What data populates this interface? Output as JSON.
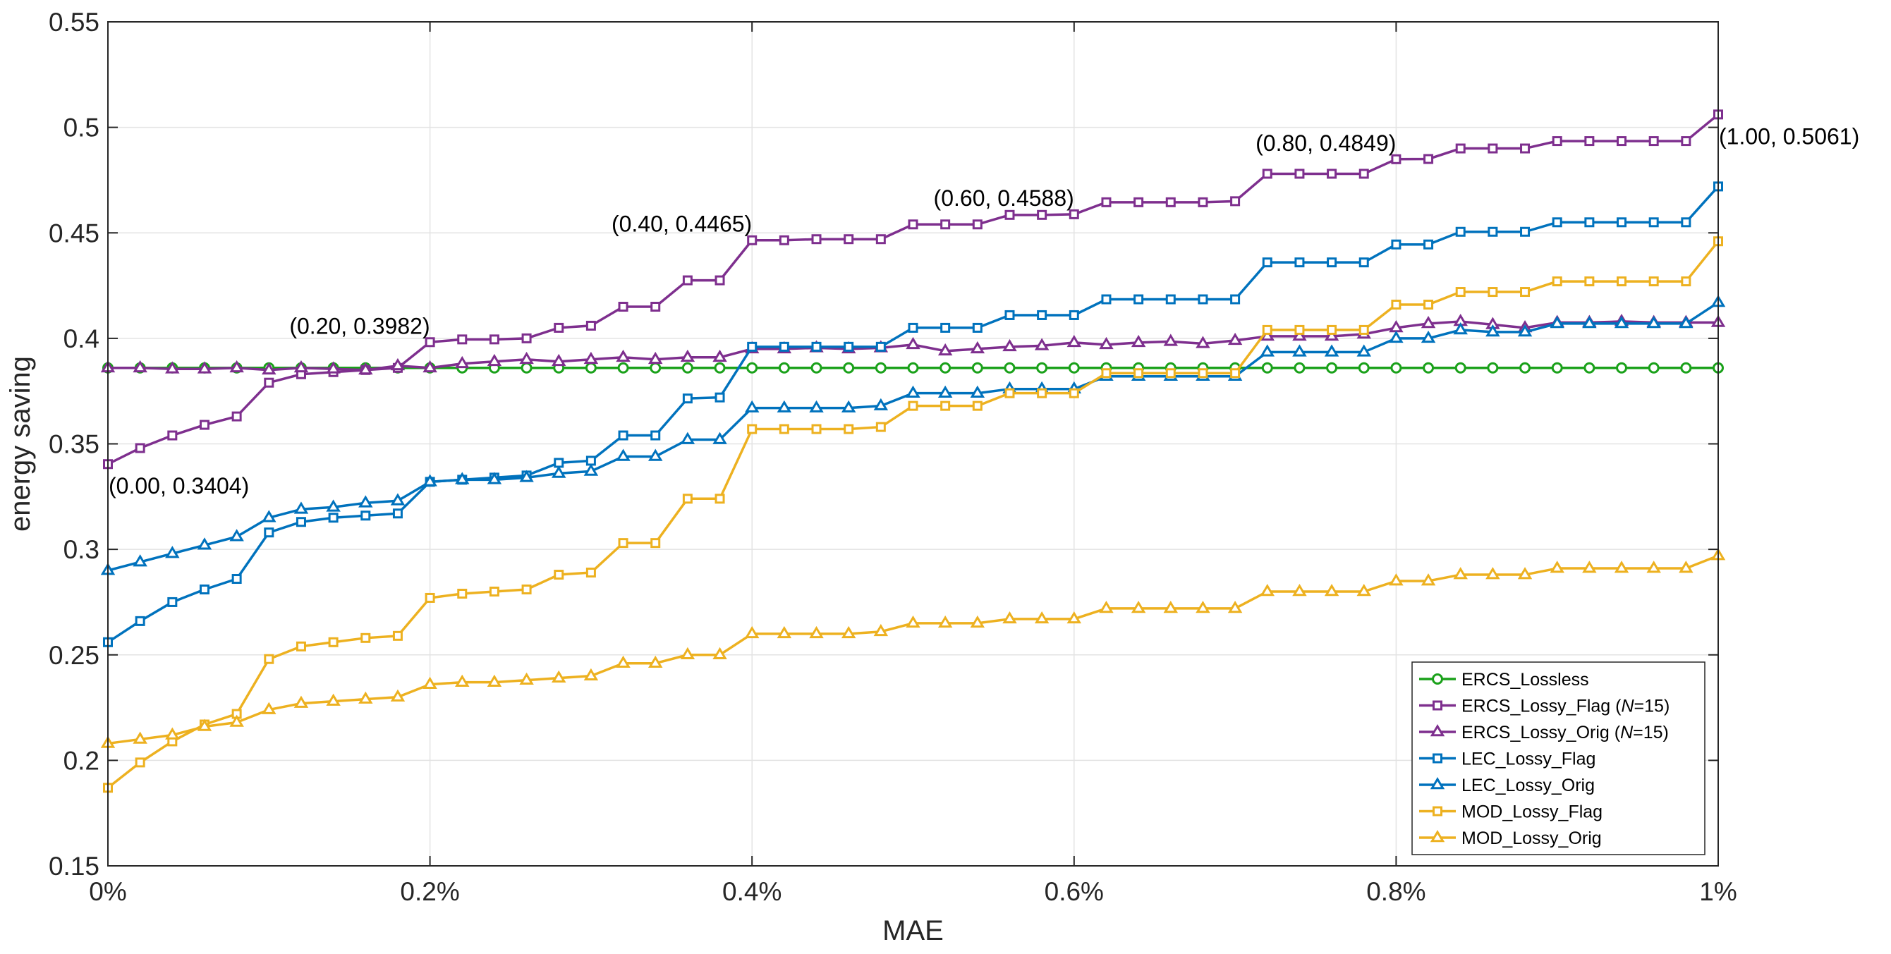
{
  "chart_data": {
    "type": "line",
    "title": "",
    "xlabel": "MAE",
    "ylabel": "energy saving",
    "xlim": [
      0,
      1
    ],
    "ylim": [
      0.15,
      0.55
    ],
    "grid": true,
    "legend_position": "bottom-right",
    "x_ticks": [
      0,
      0.2,
      0.4,
      0.6,
      0.8,
      1.0
    ],
    "x_tick_labels": [
      "0%",
      "0.2%",
      "0.4%",
      "0.6%",
      "0.8%",
      "1%"
    ],
    "y_ticks": [
      0.15,
      0.2,
      0.25,
      0.3,
      0.35,
      0.4,
      0.45,
      0.5,
      0.55
    ],
    "y_tick_labels": [
      "0.15",
      "0.2",
      "0.25",
      "0.3",
      "0.35",
      "0.4",
      "0.45",
      "0.5",
      "0.55"
    ],
    "x": [
      0,
      0.02,
      0.04,
      0.06,
      0.08,
      0.1,
      0.12,
      0.14,
      0.16,
      0.18,
      0.2,
      0.22,
      0.24,
      0.26,
      0.28,
      0.3,
      0.32,
      0.34,
      0.36,
      0.38,
      0.4,
      0.42,
      0.44,
      0.46,
      0.48,
      0.5,
      0.52,
      0.54,
      0.56,
      0.58,
      0.6,
      0.62,
      0.64,
      0.66,
      0.68,
      0.7,
      0.72,
      0.74,
      0.76,
      0.78,
      0.8,
      0.82,
      0.84,
      0.86,
      0.88,
      0.9,
      0.92,
      0.94,
      0.96,
      0.98,
      1.0
    ],
    "series": [
      {
        "name": "ERCS_Lossless",
        "legend_prefix": "ERCS_Lossless",
        "legend_italic": "",
        "legend_suffix": "",
        "color": "#1aa11a",
        "marker": "circle",
        "values": [
          0.386,
          0.386,
          0.386,
          0.386,
          0.386,
          0.386,
          0.386,
          0.386,
          0.386,
          0.386,
          0.386,
          0.386,
          0.386,
          0.386,
          0.386,
          0.386,
          0.386,
          0.386,
          0.386,
          0.386,
          0.386,
          0.386,
          0.386,
          0.386,
          0.386,
          0.386,
          0.386,
          0.386,
          0.386,
          0.386,
          0.386,
          0.386,
          0.386,
          0.386,
          0.386,
          0.386,
          0.386,
          0.386,
          0.386,
          0.386,
          0.386,
          0.386,
          0.386,
          0.386,
          0.386,
          0.386,
          0.386,
          0.386,
          0.386,
          0.386,
          0.386
        ]
      },
      {
        "name": "ERCS_Lossy_Flag (N=15)",
        "legend_prefix": "ERCS_Lossy_Flag (",
        "legend_italic": "N",
        "legend_suffix": "=15)",
        "color": "#7e2f8e",
        "marker": "square",
        "values": [
          0.3404,
          0.348,
          0.354,
          0.359,
          0.363,
          0.379,
          0.383,
          0.384,
          0.385,
          0.386,
          0.3982,
          0.3995,
          0.3995,
          0.4,
          0.405,
          0.406,
          0.415,
          0.415,
          0.4275,
          0.4275,
          0.4465,
          0.4465,
          0.447,
          0.447,
          0.447,
          0.454,
          0.454,
          0.454,
          0.4585,
          0.4585,
          0.4588,
          0.4645,
          0.4645,
          0.4645,
          0.4645,
          0.465,
          0.478,
          0.478,
          0.478,
          0.478,
          0.4849,
          0.485,
          0.49,
          0.49,
          0.49,
          0.4935,
          0.4935,
          0.4935,
          0.4935,
          0.4935,
          0.5061
        ]
      },
      {
        "name": "ERCS_Lossy_Orig (N=15)",
        "legend_prefix": "ERCS_Lossy_Orig (",
        "legend_italic": "N",
        "legend_suffix": "=15)",
        "color": "#7e2f8e",
        "marker": "triangle",
        "values": [
          0.386,
          0.386,
          0.3855,
          0.3855,
          0.386,
          0.385,
          0.386,
          0.3855,
          0.385,
          0.387,
          0.386,
          0.388,
          0.389,
          0.39,
          0.389,
          0.39,
          0.391,
          0.39,
          0.391,
          0.391,
          0.395,
          0.395,
          0.3955,
          0.395,
          0.3955,
          0.397,
          0.394,
          0.395,
          0.396,
          0.3965,
          0.398,
          0.397,
          0.398,
          0.3985,
          0.3975,
          0.399,
          0.401,
          0.401,
          0.401,
          0.402,
          0.405,
          0.407,
          0.408,
          0.4065,
          0.405,
          0.4075,
          0.4075,
          0.408,
          0.4075,
          0.4075,
          0.4075
        ]
      },
      {
        "name": "LEC_Lossy_Flag",
        "legend_prefix": "LEC_Lossy_Flag",
        "legend_italic": "",
        "legend_suffix": "",
        "color": "#0072bd",
        "marker": "square",
        "values": [
          0.256,
          0.266,
          0.275,
          0.281,
          0.286,
          0.308,
          0.313,
          0.315,
          0.316,
          0.317,
          0.332,
          0.333,
          0.334,
          0.335,
          0.341,
          0.342,
          0.354,
          0.354,
          0.3715,
          0.372,
          0.396,
          0.396,
          0.396,
          0.396,
          0.396,
          0.405,
          0.405,
          0.405,
          0.411,
          0.411,
          0.411,
          0.4185,
          0.4185,
          0.4185,
          0.4185,
          0.4185,
          0.436,
          0.436,
          0.436,
          0.436,
          0.4445,
          0.4445,
          0.4505,
          0.4505,
          0.4505,
          0.455,
          0.455,
          0.455,
          0.455,
          0.455,
          0.472
        ]
      },
      {
        "name": "LEC_Lossy_Orig",
        "legend_prefix": "LEC_Lossy_Orig",
        "legend_italic": "",
        "legend_suffix": "",
        "color": "#0072bd",
        "marker": "triangle",
        "values": [
          0.29,
          0.294,
          0.298,
          0.302,
          0.306,
          0.315,
          0.319,
          0.32,
          0.322,
          0.323,
          0.332,
          0.333,
          0.333,
          0.334,
          0.336,
          0.337,
          0.344,
          0.344,
          0.352,
          0.352,
          0.367,
          0.367,
          0.367,
          0.367,
          0.368,
          0.374,
          0.374,
          0.374,
          0.376,
          0.376,
          0.376,
          0.382,
          0.382,
          0.382,
          0.382,
          0.382,
          0.3935,
          0.3935,
          0.3935,
          0.3935,
          0.4,
          0.4,
          0.404,
          0.403,
          0.403,
          0.407,
          0.407,
          0.407,
          0.407,
          0.407,
          0.417
        ]
      },
      {
        "name": "MOD_Lossy_Flag",
        "legend_prefix": "MOD_Lossy_Flag",
        "legend_italic": "",
        "legend_suffix": "",
        "color": "#edb120",
        "marker": "square",
        "values": [
          0.187,
          0.199,
          0.209,
          0.217,
          0.222,
          0.248,
          0.254,
          0.256,
          0.258,
          0.259,
          0.277,
          0.279,
          0.28,
          0.281,
          0.288,
          0.289,
          0.303,
          0.303,
          0.324,
          0.324,
          0.357,
          0.357,
          0.357,
          0.357,
          0.358,
          0.368,
          0.368,
          0.368,
          0.374,
          0.374,
          0.374,
          0.3835,
          0.3835,
          0.3835,
          0.3835,
          0.3835,
          0.404,
          0.404,
          0.404,
          0.404,
          0.416,
          0.416,
          0.422,
          0.422,
          0.422,
          0.427,
          0.427,
          0.427,
          0.427,
          0.427,
          0.446
        ]
      },
      {
        "name": "MOD_Lossy_Orig",
        "legend_prefix": "MOD_Lossy_Orig",
        "legend_italic": "",
        "legend_suffix": "",
        "color": "#edb120",
        "marker": "triangle",
        "values": [
          0.208,
          0.21,
          0.212,
          0.216,
          0.218,
          0.224,
          0.227,
          0.228,
          0.229,
          0.23,
          0.236,
          0.237,
          0.237,
          0.238,
          0.239,
          0.24,
          0.246,
          0.246,
          0.25,
          0.25,
          0.26,
          0.26,
          0.26,
          0.26,
          0.261,
          0.265,
          0.265,
          0.265,
          0.267,
          0.267,
          0.267,
          0.272,
          0.272,
          0.272,
          0.272,
          0.272,
          0.28,
          0.28,
          0.28,
          0.28,
          0.285,
          0.285,
          0.288,
          0.288,
          0.288,
          0.291,
          0.291,
          0.291,
          0.291,
          0.291,
          0.297
        ]
      }
    ],
    "annotations": [
      {
        "text": "(0.00, 0.3404)",
        "x": 0.0,
        "y": 0.3404,
        "placement": "below-right"
      },
      {
        "text": "(0.20, 0.3982)",
        "x": 0.2,
        "y": 0.3982,
        "placement": "above-left"
      },
      {
        "text": "(0.40, 0.4465)",
        "x": 0.4,
        "y": 0.4465,
        "placement": "above-left"
      },
      {
        "text": "(0.60, 0.4588)",
        "x": 0.6,
        "y": 0.4588,
        "placement": "above-left"
      },
      {
        "text": "(0.80, 0.4849)",
        "x": 0.8,
        "y": 0.4849,
        "placement": "above-left"
      },
      {
        "text": "(1.00, 0.5061)",
        "x": 1.0,
        "y": 0.5061,
        "placement": "below-right"
      }
    ]
  }
}
